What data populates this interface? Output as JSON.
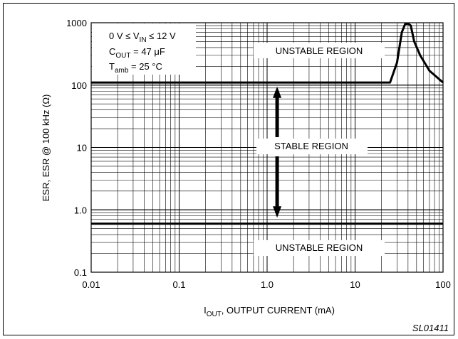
{
  "chart_data": {
    "type": "line",
    "x_scale": "log",
    "y_scale": "log",
    "xlim": [
      0.01,
      100
    ],
    "ylim": [
      0.1,
      1000
    ],
    "grid": true,
    "xlabel": {
      "main": "I",
      "sub": "OUT",
      "rest": ", OUTPUT CURRENT (mA)"
    },
    "ylabel": "ESR, ESR @ 100 kHz (Ω)",
    "x_ticks": [
      {
        "value": 0.01,
        "label": "0.01"
      },
      {
        "value": 0.1,
        "label": "0.1"
      },
      {
        "value": 1,
        "label": "1.0"
      },
      {
        "value": 10,
        "label": "10"
      },
      {
        "value": 100,
        "label": "100"
      }
    ],
    "y_ticks": [
      {
        "value": 0.1,
        "label": "0.1"
      },
      {
        "value": 1,
        "label": "1.0"
      },
      {
        "value": 10,
        "label": "10"
      },
      {
        "value": 100,
        "label": "100"
      },
      {
        "value": 1000,
        "label": "1000"
      }
    ],
    "conditions": [
      {
        "pre": "0 V ≤ V",
        "sub": "IN",
        "post": " ≤ 12 V"
      },
      {
        "pre": "C",
        "sub": "OUT",
        "post": " = 47 μF"
      },
      {
        "pre": "T",
        "sub": "amb",
        "post": " = 25 °C"
      }
    ],
    "region_labels": {
      "upper": "UNSTABLE REGION",
      "middle": "STABLE REGION",
      "lower": "UNSTABLE REGION"
    },
    "figure_id": "SL01411",
    "series": [
      {
        "points": [
          [
            0.01,
            110
          ],
          [
            25,
            110
          ],
          [
            30,
            230
          ],
          [
            34,
            700
          ],
          [
            37,
            950
          ],
          [
            40,
            970
          ],
          [
            43,
            900
          ],
          [
            47,
            500
          ],
          [
            55,
            300
          ],
          [
            70,
            170
          ],
          [
            100,
            110
          ]
        ]
      },
      {
        "points": [
          [
            0.01,
            0.6
          ],
          [
            100,
            0.6
          ]
        ]
      }
    ],
    "arrow": {
      "x": 1.3,
      "y_from": 0.75,
      "y_to": 95
    }
  }
}
